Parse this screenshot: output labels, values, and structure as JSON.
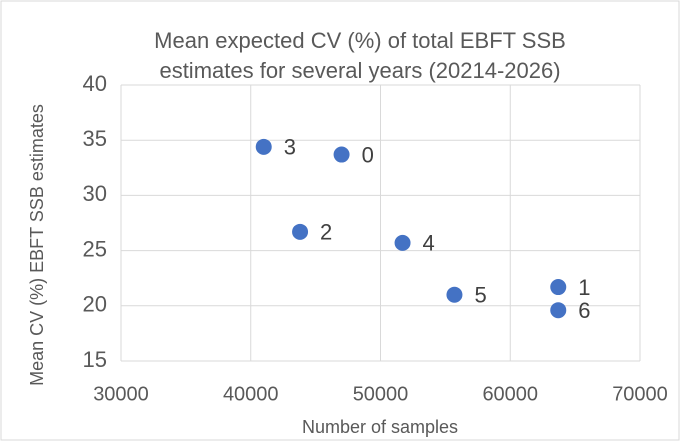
{
  "chart_data": {
    "type": "scatter",
    "title": [
      "Mean expected CV (%) of total EBFT SSB",
      "estimates for several years (20214-2026)"
    ],
    "x_label": "Number of samples",
    "y_label": "Mean CV (%) EBFT SSB estimates",
    "x": [
      47000,
      63700,
      43800,
      41000,
      51700,
      55700,
      63700
    ],
    "values": [
      33.7,
      21.7,
      26.7,
      34.4,
      25.7,
      21.0,
      19.6
    ],
    "point_labels": [
      "0",
      "1",
      "2",
      "3",
      "4",
      "5",
      "6"
    ],
    "color": "#4472c4",
    "xlim": [
      30000,
      70000
    ],
    "xticks": [
      30000,
      40000,
      50000,
      60000,
      70000
    ],
    "ylim": [
      15,
      40
    ],
    "yticks": [
      15,
      20,
      25,
      30,
      35,
      40
    ],
    "grid": true
  }
}
